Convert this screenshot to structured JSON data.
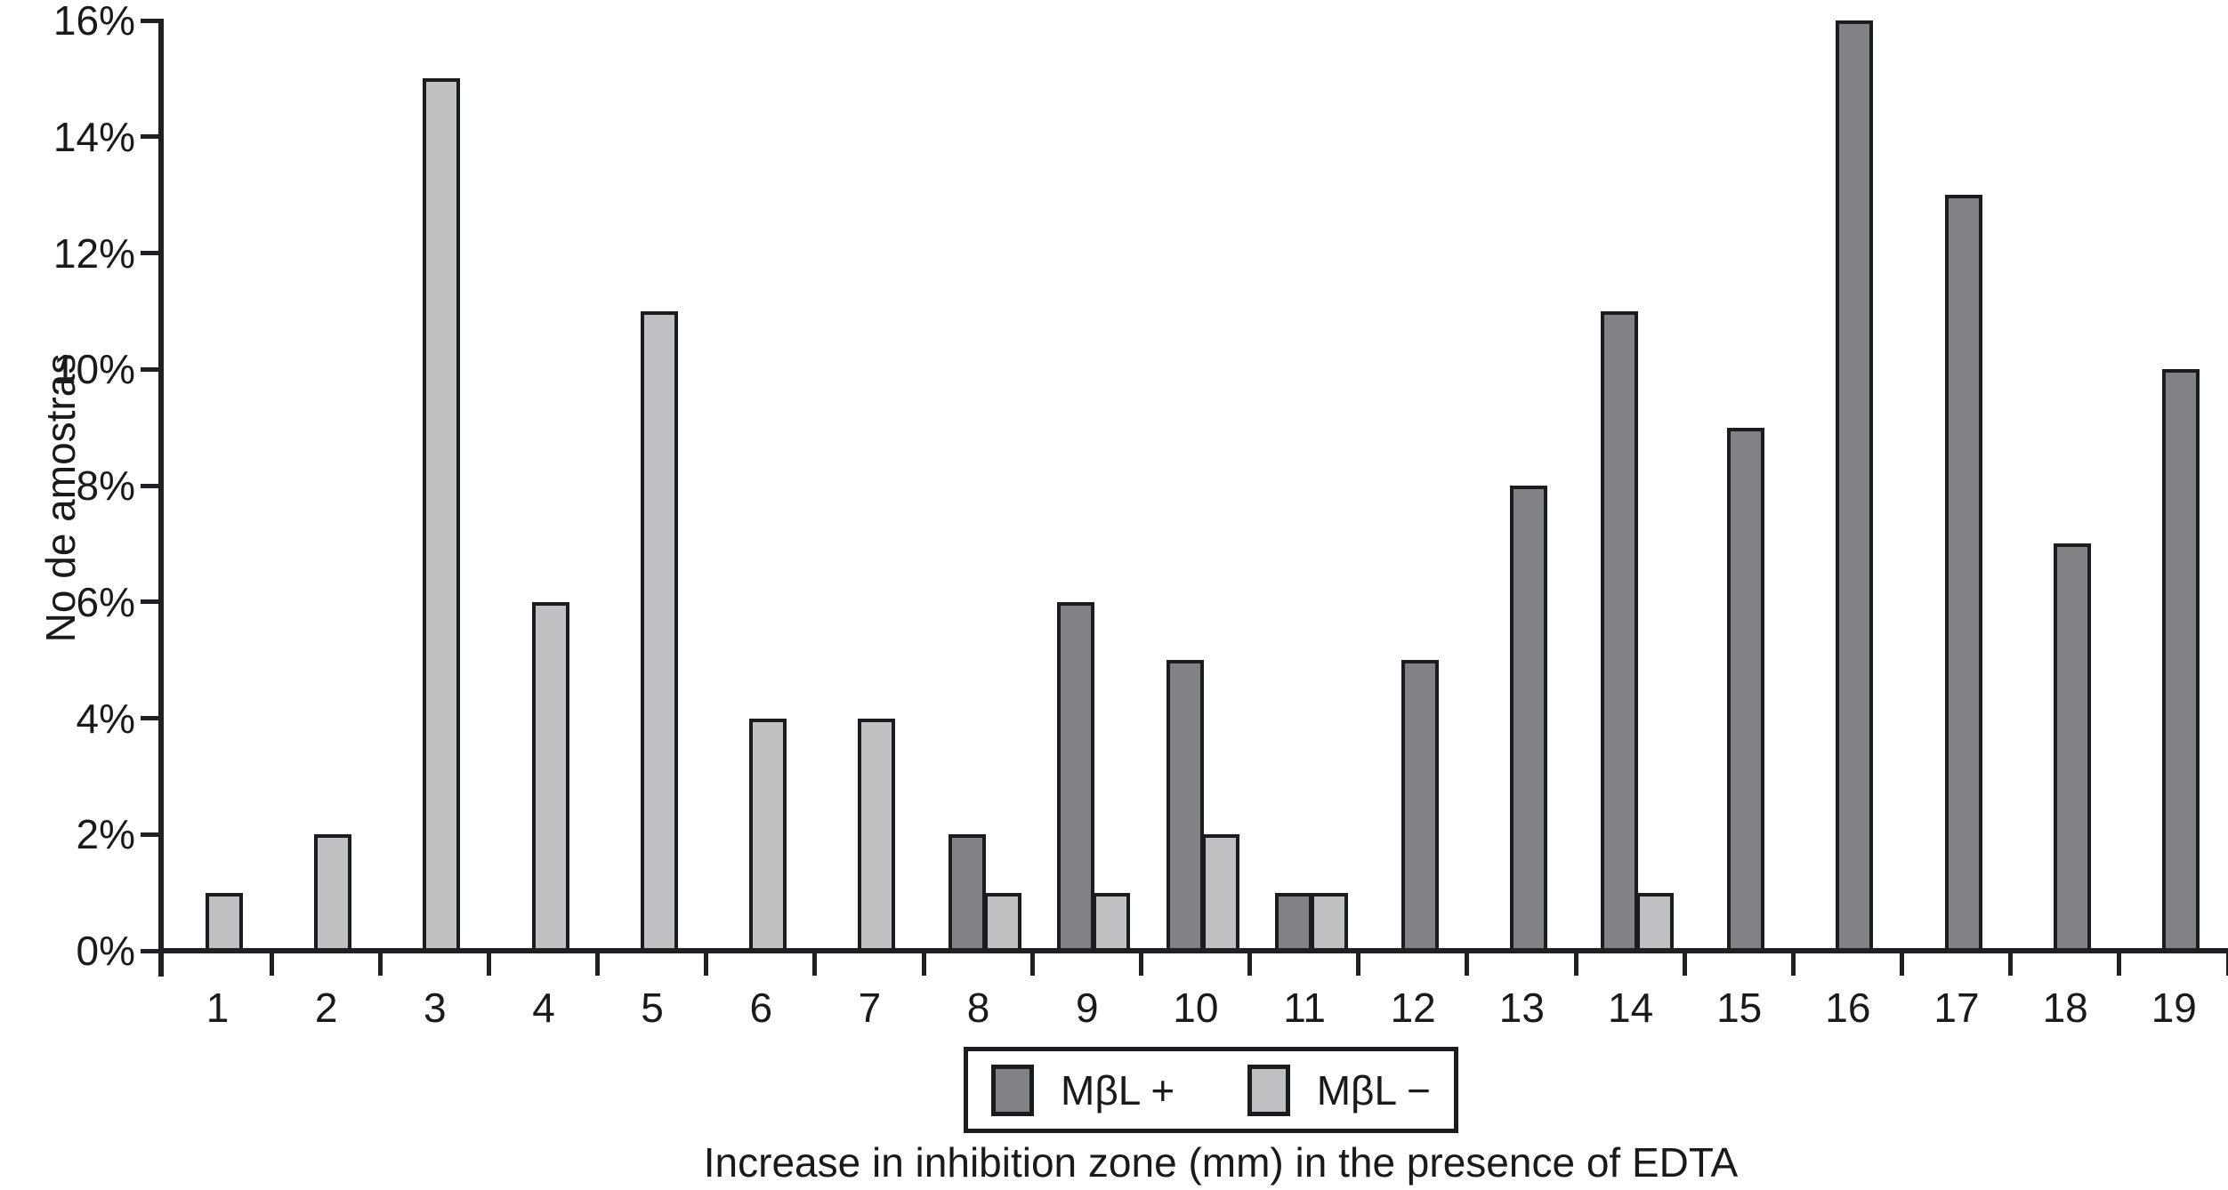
{
  "figure": {
    "y_axis_title": "No de amostras",
    "x_axis_title": "Increase in inhibition zone (mm) in the presence of EDTA"
  },
  "legend": {
    "items": [
      {
        "label": "MβL +",
        "color": "#808285"
      },
      {
        "label": "MβL −",
        "color": "#bfc0c2"
      }
    ]
  },
  "chart_data": {
    "type": "bar",
    "title": "",
    "categories": [
      "1",
      "2",
      "3",
      "4",
      "5",
      "6",
      "7",
      "8",
      "9",
      "10",
      "11",
      "12",
      "13",
      "14",
      "15",
      "16",
      "17",
      "18",
      "19"
    ],
    "series": [
      {
        "name": "MβL +",
        "color": "#808285",
        "values": [
          0,
          0,
          0,
          0,
          0,
          0,
          0,
          2,
          6,
          5,
          1,
          5,
          8,
          11,
          9,
          16,
          13,
          7,
          10
        ]
      },
      {
        "name": "MβL −",
        "color": "#bfc0c2",
        "values": [
          1,
          2,
          15,
          6,
          11,
          4,
          4,
          1,
          1,
          2,
          1,
          0,
          0,
          1,
          0,
          0,
          0,
          0,
          0
        ]
      }
    ],
    "xlabel": "Increase in inhibition zone (mm) in the presence of EDTA",
    "ylabel": "No de amostras",
    "ylim": [
      0,
      16
    ],
    "y_tick_step": 2,
    "y_tick_labels": [
      "0%",
      "2%",
      "4%",
      "6%",
      "8%",
      "10%",
      "12%",
      "14%",
      "16%"
    ],
    "grid": false,
    "bar_border_color": "#1b1c20",
    "legend_position": "bottom-center"
  }
}
